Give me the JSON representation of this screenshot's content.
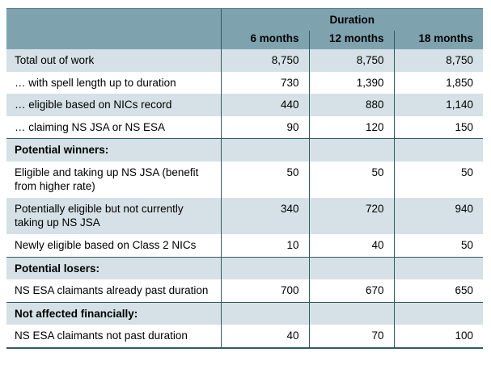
{
  "table": {
    "header": {
      "duration_label": "Duration",
      "columns": [
        "6 months",
        "12 months",
        "18 months"
      ]
    },
    "rows": [
      {
        "type": "data",
        "label": "Total out of work",
        "values": [
          "8,750",
          "8,750",
          "8,750"
        ]
      },
      {
        "type": "data",
        "label": "… with spell length up to duration",
        "values": [
          "730",
          "1,390",
          "1,850"
        ]
      },
      {
        "type": "data",
        "label": "… eligible based on NICs record",
        "values": [
          "440",
          "880",
          "1,140"
        ]
      },
      {
        "type": "data",
        "label": "… claiming NS JSA or NS ESA",
        "values": [
          "90",
          "120",
          "150"
        ]
      },
      {
        "type": "section",
        "label": "Potential winners:",
        "values": [
          "",
          "",
          ""
        ]
      },
      {
        "type": "data",
        "label": "Eligible and taking up NS JSA (benefit from higher rate)",
        "values": [
          "50",
          "50",
          "50"
        ]
      },
      {
        "type": "data",
        "label": "Potentially eligible but not currently taking up NS JSA",
        "values": [
          "340",
          "720",
          "940"
        ]
      },
      {
        "type": "data",
        "label": "Newly eligible based on Class 2 NICs",
        "values": [
          "10",
          "40",
          "50"
        ]
      },
      {
        "type": "section",
        "label": "Potential losers:",
        "values": [
          "",
          "",
          ""
        ]
      },
      {
        "type": "data",
        "label": "NS ESA claimants already past duration",
        "values": [
          "700",
          "670",
          "650"
        ]
      },
      {
        "type": "section",
        "label": "Not affected financially:",
        "values": [
          "",
          "",
          ""
        ]
      },
      {
        "type": "data",
        "label": "NS ESA claimants not past duration",
        "values": [
          "40",
          "70",
          "100"
        ]
      }
    ],
    "colors": {
      "header_bg": "#7EA3AF",
      "stripe_bg": "#D5E1E6",
      "rule": "#355964"
    }
  }
}
